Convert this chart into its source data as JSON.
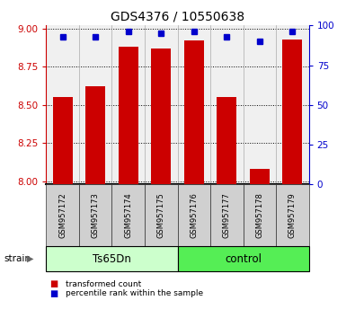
{
  "title": "GDS4376 / 10550638",
  "samples": [
    "GSM957172",
    "GSM957173",
    "GSM957174",
    "GSM957175",
    "GSM957176",
    "GSM957177",
    "GSM957178",
    "GSM957179"
  ],
  "transformed_counts": [
    8.55,
    8.62,
    8.88,
    8.87,
    8.92,
    8.55,
    8.08,
    8.93
  ],
  "percentile_ranks": [
    93,
    93,
    96,
    95,
    96,
    93,
    90,
    96
  ],
  "groups": [
    "Ts65Dn",
    "Ts65Dn",
    "Ts65Dn",
    "Ts65Dn",
    "control",
    "control",
    "control",
    "control"
  ],
  "group_colors": {
    "Ts65Dn": "#ccffcc",
    "control": "#55ee55"
  },
  "ylim_left": [
    7.98,
    9.02
  ],
  "ylim_right": [
    0,
    100
  ],
  "yticks_left": [
    8.0,
    8.25,
    8.5,
    8.75,
    9.0
  ],
  "yticks_right": [
    0,
    25,
    50,
    75,
    100
  ],
  "bar_color": "#cc0000",
  "dot_color": "#0000cc",
  "bar_width": 0.6,
  "background_color": "#ffffff",
  "plot_bg_color": "#f0f0f0",
  "left_tick_color": "#cc0000",
  "right_tick_color": "#0000cc",
  "grid_color": "#000000",
  "strain_label": "strain",
  "legend_items": [
    {
      "label": "transformed count",
      "color": "#cc0000"
    },
    {
      "label": "percentile rank within the sample",
      "color": "#0000cc"
    }
  ]
}
